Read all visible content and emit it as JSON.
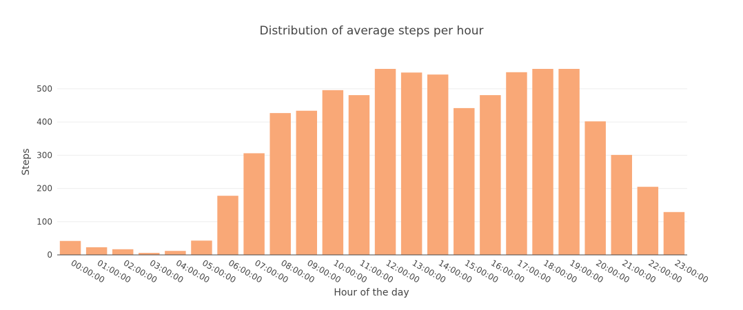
{
  "chart_data": {
    "type": "bar",
    "title": "Distribution of average steps per hour",
    "xlabel": "Hour of the day",
    "ylabel": "Steps",
    "categories": [
      "00:00:00",
      "01:00:00",
      "02:00:00",
      "03:00:00",
      "04:00:00",
      "05:00:00",
      "06:00:00",
      "07:00:00",
      "08:00:00",
      "09:00:00",
      "10:00:00",
      "11:00:00",
      "12:00:00",
      "13:00:00",
      "14:00:00",
      "15:00:00",
      "16:00:00",
      "17:00:00",
      "18:00:00",
      "19:00:00",
      "20:00:00",
      "21:00:00",
      "22:00:00",
      "23:00:00"
    ],
    "values": [
      42,
      23,
      17,
      6,
      12,
      43,
      178,
      306,
      427,
      434,
      496,
      481,
      599,
      549,
      543,
      442,
      481,
      550,
      594,
      599,
      402,
      301,
      205,
      129
    ],
    "ylim": [
      0,
      560
    ],
    "yticks": [
      0,
      100,
      200,
      300,
      400,
      500
    ],
    "ytick_labels": [
      "0",
      "100",
      "200",
      "300",
      "400",
      "500"
    ],
    "grid": true,
    "bar_color": "#F9A877"
  }
}
